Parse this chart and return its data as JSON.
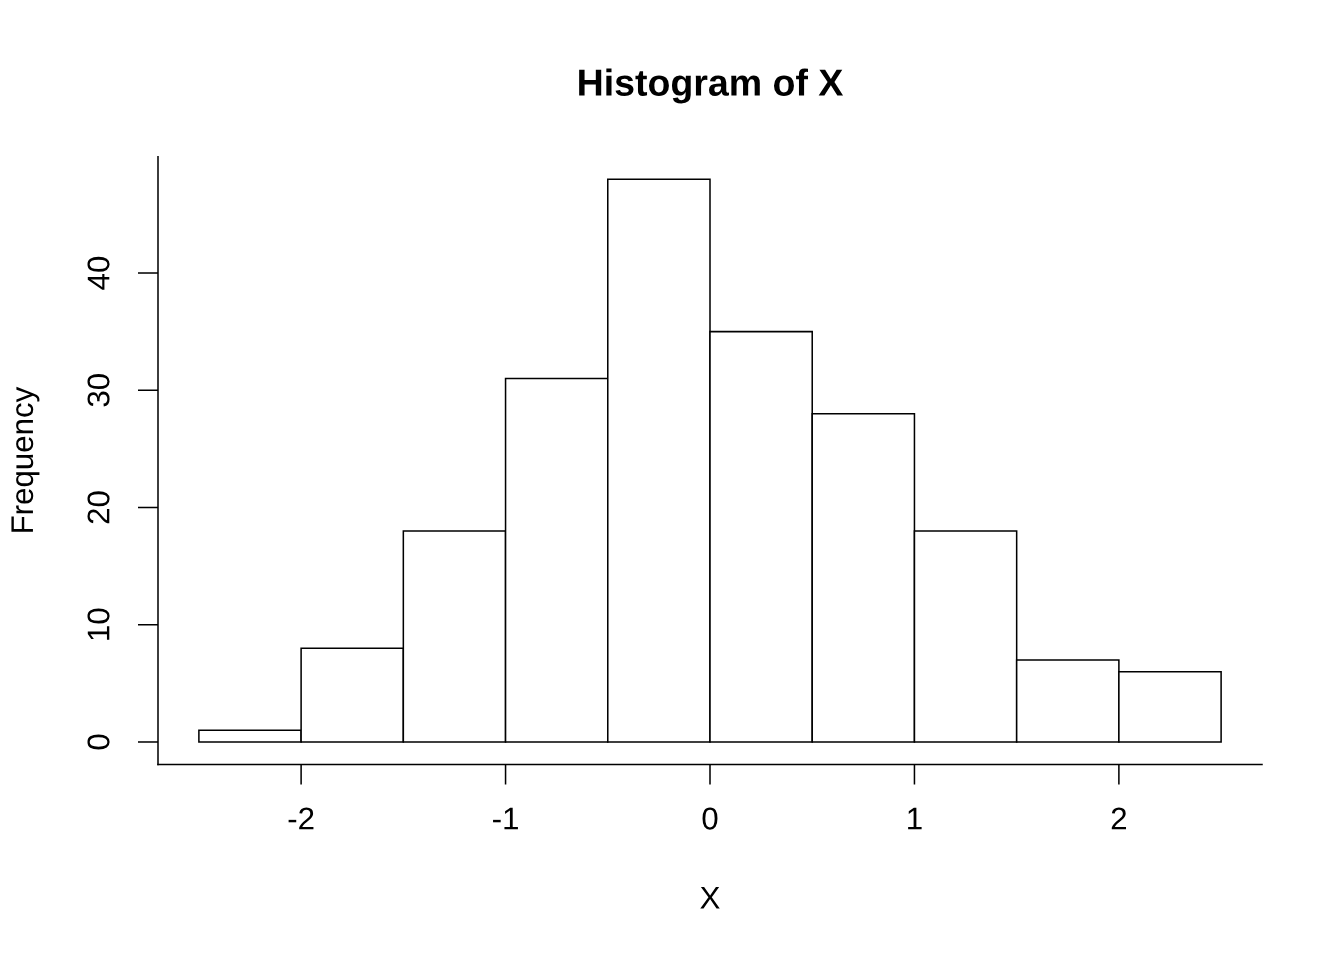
{
  "chart_data": {
    "type": "histogram",
    "title": "Histogram of X",
    "xlabel": "X",
    "ylabel": "Frequency",
    "bins": [
      -2.5,
      -2.0,
      -1.5,
      -1.0,
      -0.5,
      0.0,
      0.5,
      1.0,
      1.5,
      2.0,
      2.5
    ],
    "values": [
      1,
      8,
      18,
      31,
      48,
      35,
      28,
      18,
      7,
      6
    ],
    "color": "#ffffff",
    "xlim": [
      -2.7,
      2.7
    ],
    "ylim": [
      -1.92,
      49.92
    ],
    "xticks": [
      -2,
      -1,
      0,
      1,
      2
    ],
    "yticks": [
      0,
      10,
      20,
      30,
      40
    ]
  }
}
